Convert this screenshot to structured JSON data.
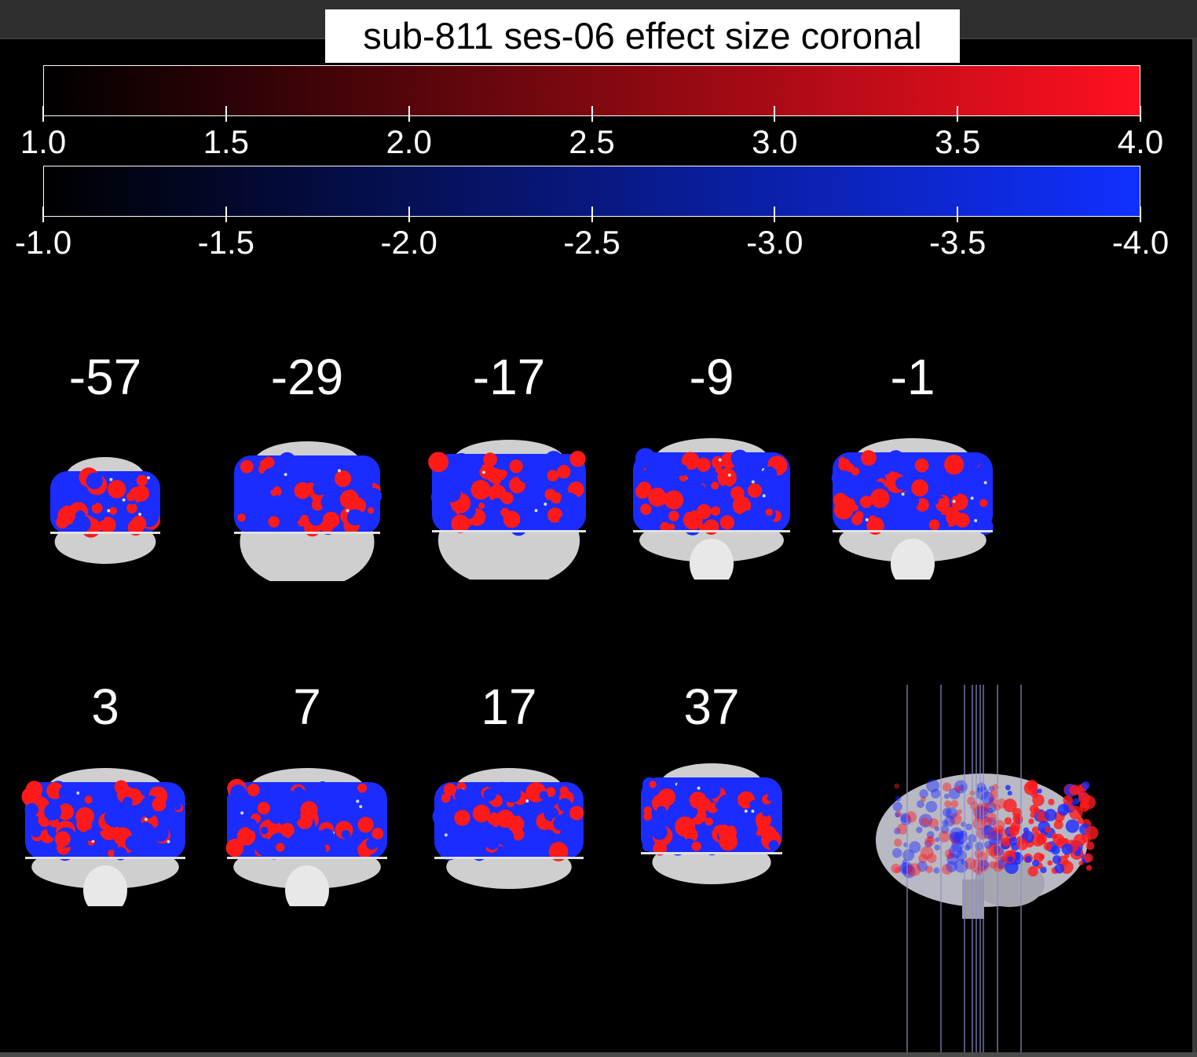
{
  "title": "sub-811 ses-06 effect size coronal",
  "colorbars": {
    "positive": {
      "colors": [
        "#000000",
        "#ff1020"
      ],
      "ticks": [
        "1.0",
        "1.5",
        "2.0",
        "2.5",
        "3.0",
        "3.5",
        "4.0"
      ]
    },
    "negative": {
      "colors": [
        "#000000",
        "#1030ff"
      ],
      "ticks": [
        "-1.0",
        "-1.5",
        "-2.0",
        "-2.5",
        "-3.0",
        "-3.5",
        "-4.0"
      ]
    }
  },
  "slices": {
    "row1": [
      "-57",
      "-29",
      "-17",
      "-9",
      "-1"
    ],
    "row2": [
      "3",
      "7",
      "17",
      "37"
    ]
  },
  "overlay_colors": {
    "positive": "#ff1a1a",
    "negative": "#1a2cff",
    "anatomy": "#cfcfcf"
  },
  "render3d": {
    "view": "sagittal brain render with slice position lines"
  }
}
